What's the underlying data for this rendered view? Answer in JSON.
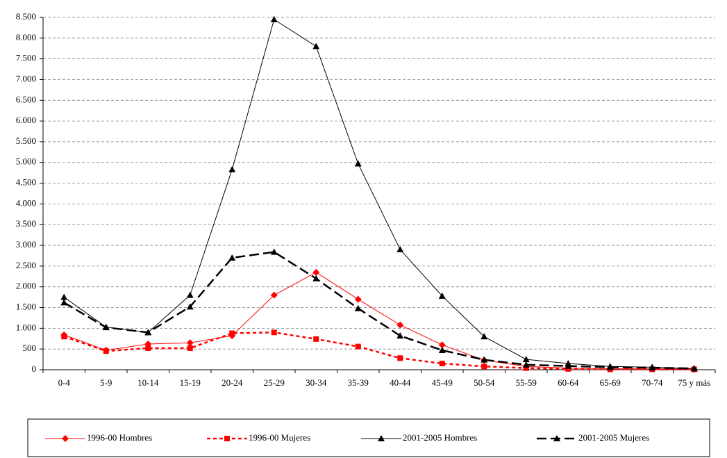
{
  "chart_data": {
    "type": "line",
    "categories": [
      "0-4",
      "5-9",
      "10-14",
      "15-19",
      "20-24",
      "25-29",
      "30-34",
      "35-39",
      "40-44",
      "45-49",
      "50-54",
      "55-59",
      "60-64",
      "65-69",
      "70-74",
      "75 y más"
    ],
    "series": [
      {
        "name": "1996-00 Hombres",
        "color": "#ff0000",
        "dashed": false,
        "marker": "diamond",
        "values": [
          840,
          470,
          620,
          650,
          820,
          1800,
          2350,
          1700,
          1080,
          600,
          230,
          80,
          40,
          20,
          20,
          10
        ]
      },
      {
        "name": "1996-00 Mujeres",
        "color": "#ff0000",
        "dashed": true,
        "marker": "square",
        "values": [
          800,
          450,
          520,
          520,
          880,
          900,
          740,
          560,
          280,
          150,
          80,
          40,
          20,
          10,
          10,
          10
        ]
      },
      {
        "name": "2001-2005 Hombres",
        "color": "#000000",
        "dashed": false,
        "marker": "triangle",
        "values": [
          1750,
          1030,
          900,
          1800,
          4830,
          8450,
          7800,
          4970,
          2900,
          1780,
          800,
          250,
          150,
          80,
          60,
          30
        ]
      },
      {
        "name": "2001-2005 Mujeres",
        "color": "#000000",
        "dashed": true,
        "marker": "triangle",
        "values": [
          1620,
          1020,
          900,
          1520,
          2700,
          2840,
          2200,
          1480,
          820,
          470,
          240,
          120,
          90,
          60,
          50,
          30
        ]
      }
    ],
    "ylim": [
      0,
      8500
    ],
    "yticks": [
      0,
      500,
      {
        "value": 1000,
        "label": "1.000"
      },
      {
        "value": 1500,
        "label": "1.500"
      },
      {
        "value": 2000,
        "label": "2.000"
      },
      {
        "value": 2500,
        "label": "2.500"
      },
      {
        "value": 3000,
        "label": "3.000"
      },
      {
        "value": 3500,
        "label": "3.500"
      },
      {
        "value": 4000,
        "label": "4.000"
      },
      {
        "value": 4500,
        "label": "4.500"
      },
      {
        "value": 5000,
        "label": "5.000"
      },
      {
        "value": 5500,
        "label": "5.500"
      },
      {
        "value": 6000,
        "label": "6.000"
      },
      {
        "value": 6500,
        "label": "6.500"
      },
      {
        "value": 7000,
        "label": "7.000"
      },
      {
        "value": 7500,
        "label": "7.500"
      },
      {
        "value": 8000,
        "label": "8.000"
      },
      {
        "value": 8500,
        "label": "8.500"
      }
    ],
    "grid": true,
    "legend": "bottom"
  }
}
